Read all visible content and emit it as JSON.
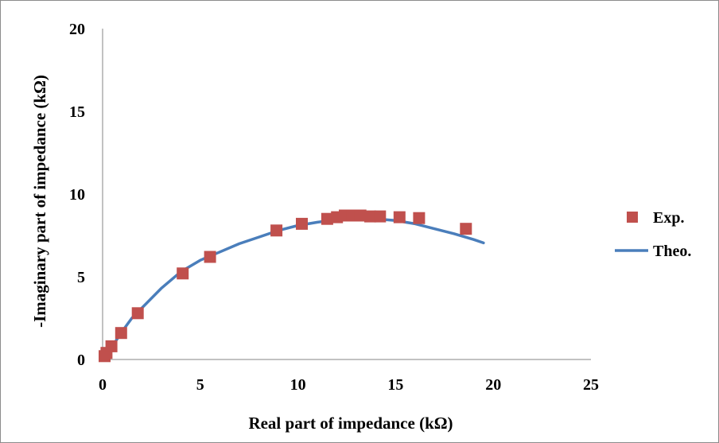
{
  "chart_data": {
    "type": "scatter",
    "title": "",
    "xlabel": "Real part of impedance (kΩ)",
    "ylabel": "-Imaginary part of impedance (kΩ)",
    "xlim": [
      0,
      25
    ],
    "ylim": [
      0,
      20
    ],
    "x_ticks": [
      "0",
      "5",
      "10",
      "15",
      "20",
      "25"
    ],
    "y_ticks": [
      "0",
      "5",
      "10",
      "15",
      "20"
    ],
    "grid": false,
    "legend_position": "right",
    "series": [
      {
        "name": "Exp.",
        "kind": "markers",
        "marker": "square",
        "color": "#c0504d",
        "points": [
          [
            0.1,
            0.2
          ],
          [
            0.2,
            0.4
          ],
          [
            0.45,
            0.8
          ],
          [
            0.95,
            1.6
          ],
          [
            1.8,
            2.8
          ],
          [
            4.1,
            5.2
          ],
          [
            5.5,
            6.2
          ],
          [
            8.9,
            7.8
          ],
          [
            10.2,
            8.2
          ],
          [
            11.5,
            8.5
          ],
          [
            12.0,
            8.6
          ],
          [
            12.4,
            8.7
          ],
          [
            12.8,
            8.7
          ],
          [
            13.2,
            8.7
          ],
          [
            13.7,
            8.65
          ],
          [
            14.2,
            8.65
          ],
          [
            15.2,
            8.6
          ],
          [
            16.2,
            8.55
          ],
          [
            18.6,
            7.9
          ]
        ]
      },
      {
        "name": "Theo.",
        "kind": "line",
        "color": "#4a7ebb",
        "points": [
          [
            0.1,
            0.1
          ],
          [
            0.5,
            0.8
          ],
          [
            1.0,
            1.7
          ],
          [
            1.5,
            2.5
          ],
          [
            2.0,
            3.1
          ],
          [
            3.0,
            4.3
          ],
          [
            4.0,
            5.3
          ],
          [
            5.0,
            6.0
          ],
          [
            6.0,
            6.5
          ],
          [
            7.0,
            7.0
          ],
          [
            8.0,
            7.4
          ],
          [
            9.0,
            7.8
          ],
          [
            10.0,
            8.1
          ],
          [
            11.0,
            8.3
          ],
          [
            12.0,
            8.45
          ],
          [
            13.0,
            8.5
          ],
          [
            14.0,
            8.5
          ],
          [
            15.0,
            8.4
          ],
          [
            16.0,
            8.2
          ],
          [
            17.0,
            7.9
          ],
          [
            18.0,
            7.6
          ],
          [
            19.0,
            7.25
          ],
          [
            19.5,
            7.05
          ]
        ]
      }
    ]
  }
}
